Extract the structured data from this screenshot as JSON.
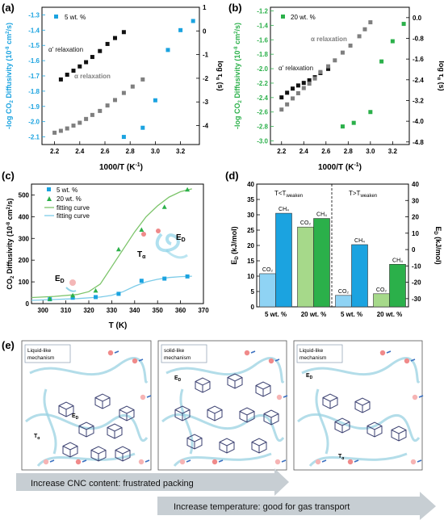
{
  "figure": {
    "panels": {
      "a": {
        "letter": "(a)",
        "legend": "5 wt. %",
        "alpha_prime_label": "α' relaxation",
        "alpha_label": "α relaxation"
      },
      "b": {
        "letter": "(b)",
        "legend": "20 wt. %",
        "alpha_prime_label": "α' relaxation",
        "alpha_label": "α relaxation"
      },
      "c": {
        "letter": "(c)",
        "legend_5": "5 wt. %",
        "legend_20": "20 wt. %",
        "fit1": "fitting curve",
        "fit2": "fitting curve",
        "ed_label": "E",
        "ed_sub": "D",
        "ta_label": "T",
        "ta_sub": "α"
      },
      "d": {
        "letter": "(d)",
        "left_header": "T<T",
        "left_header_sub": "weaken",
        "right_header": "T>T",
        "right_header_sub": "weaken"
      },
      "e": {
        "letter": "(e)",
        "box1_label_line1": "Liquid-like",
        "box1_label_line2": "mechanism",
        "box2_label_line1": "solid-like",
        "box2_label_line2": "mechanism",
        "box3_label_line1": "Liquid-like",
        "box3_label_line2": "mechanism",
        "ed": "E",
        "ed_sub": "D",
        "ta": "T",
        "ta_sub": "α",
        "arrow1": "Increase CNC content: frustrated packing",
        "arrow2": "Increase temperature: good for gas transport"
      }
    },
    "colors": {
      "blue": "#1ba3e0",
      "green": "#2bb04a",
      "black": "#111111",
      "gray": "#7f7f7f",
      "light_blue": "#8fd3f4",
      "light_green": "#a6d98a",
      "dark_green": "#1e8a3a"
    }
  },
  "chart_data": [
    {
      "type": "scatter",
      "panel": "a",
      "xlabel": "1000/T (K⁻¹)",
      "ylabel_left": "-log CO₂ Diffusivity (10⁻⁸ cm²/s)",
      "ylabel_right": "log τα (s)",
      "xlim": [
        2.1,
        3.35
      ],
      "ylim_left": [
        -2.15,
        -1.25
      ],
      "ylim_right": [
        -4.8,
        1.0
      ],
      "xticks": [
        "2.2",
        "2.4",
        "2.6",
        "2.8",
        "3.0",
        "3.2"
      ],
      "yticks_left": [
        "-1.3",
        "-1.4",
        "-1.5",
        "-1.6",
        "-1.7",
        "-1.8",
        "-1.9",
        "-2.0",
        "-2.1"
      ],
      "yticks_right": [
        "1",
        "0",
        "-1",
        "-2",
        "-3",
        "-4"
      ],
      "series": [
        {
          "name": "5 wt. %",
          "axis": "left",
          "color": "#1ba3e0",
          "x": [
            2.75,
            2.9,
            3.0,
            3.1,
            3.2,
            3.3
          ],
          "y": [
            -2.1,
            -2.04,
            -1.86,
            -1.53,
            -1.4,
            -1.34
          ]
        },
        {
          "axis": "right",
          "color": "#111111",
          "x": [
            2.25,
            2.3,
            2.35,
            2.4,
            2.45,
            2.5,
            2.56,
            2.62,
            2.68,
            2.75
          ],
          "y": [
            -2.05,
            -1.85,
            -1.68,
            -1.5,
            -1.32,
            -1.1,
            -0.85,
            -0.55,
            -0.3,
            -0.05
          ]
        },
        {
          "axis": "right",
          "color": "#7f7f7f",
          "x": [
            2.2,
            2.25,
            2.3,
            2.35,
            2.4,
            2.45,
            2.5,
            2.56,
            2.62,
            2.68,
            2.75,
            2.82,
            2.9
          ],
          "y": [
            -4.3,
            -4.22,
            -4.12,
            -4.0,
            -3.88,
            -3.72,
            -3.55,
            -3.38,
            -3.15,
            -2.92,
            -2.62,
            -2.35,
            -2.05
          ]
        }
      ]
    },
    {
      "type": "scatter",
      "panel": "b",
      "xlabel": "1000/T (K⁻¹)",
      "ylabel_left": "-log CO₂ Diffusivity (10⁻⁸ cm²/s)",
      "ylabel_right": "log τα (s)",
      "xlim": [
        2.1,
        3.35
      ],
      "ylim_left": [
        -3.05,
        -1.15
      ],
      "ylim_right": [
        -4.9,
        0.4
      ],
      "xticks": [
        "2.2",
        "2.4",
        "2.6",
        "2.8",
        "3.0",
        "3.2"
      ],
      "yticks_left": [
        "-1.2",
        "-1.4",
        "-1.6",
        "-1.8",
        "-2.0",
        "-2.2",
        "-2.4",
        "-2.6",
        "-2.8",
        "-3.0"
      ],
      "yticks_right": [
        "0.0",
        "-0.8",
        "-1.6",
        "-2.4",
        "-3.2",
        "-4.0",
        "-4.8"
      ],
      "series": [
        {
          "name": "20 wt. %",
          "axis": "left",
          "color": "#2bb04a",
          "x": [
            2.75,
            2.85,
            3.0,
            3.1,
            3.2,
            3.3
          ],
          "y": [
            -2.8,
            -2.75,
            -2.6,
            -1.9,
            -1.62,
            -1.38
          ]
        },
        {
          "axis": "right",
          "color": "#111111",
          "x": [
            2.2,
            2.25,
            2.3,
            2.35,
            2.4,
            2.45,
            2.5,
            2.55,
            2.62
          ],
          "y": [
            -3.08,
            -2.9,
            -2.74,
            -2.62,
            -2.52,
            -2.42,
            -2.3,
            -2.14,
            -1.98
          ]
        },
        {
          "axis": "right",
          "color": "#7f7f7f",
          "x": [
            2.2,
            2.25,
            2.3,
            2.35,
            2.4,
            2.45,
            2.5,
            2.55,
            2.62,
            2.68,
            2.75,
            2.82,
            2.9,
            2.95,
            3.0
          ],
          "y": [
            -3.55,
            -3.35,
            -3.12,
            -2.92,
            -2.72,
            -2.55,
            -2.35,
            -2.1,
            -1.88,
            -1.65,
            -1.35,
            -1.08,
            -0.72,
            -0.45,
            -0.18
          ]
        }
      ]
    },
    {
      "type": "scatter",
      "panel": "c",
      "xlabel": "T (K)",
      "ylabel": "CO₂ Diffusivity (10⁻⁸ cm²/s)",
      "xlim": [
        295,
        370
      ],
      "ylim": [
        0,
        550
      ],
      "xticks": [
        "300",
        "310",
        "320",
        "330",
        "340",
        "350",
        "360",
        "370"
      ],
      "yticks": [
        "0",
        "100",
        "200",
        "300",
        "400",
        "500"
      ],
      "series": [
        {
          "name": "5 wt. %",
          "color": "#1ba3e0",
          "x": [
            303,
            313,
            323,
            333,
            343,
            353,
            363
          ],
          "y": [
            20,
            27,
            30,
            45,
            105,
            115,
            125
          ]
        },
        {
          "name": "20 wt. %",
          "color": "#2bb04a",
          "x": [
            303,
            313,
            323,
            333,
            343,
            353,
            363
          ],
          "y": [
            22,
            38,
            60,
            250,
            340,
            445,
            525
          ]
        },
        {
          "name": "fitting curve",
          "color": "#2bb04a",
          "fit": true,
          "x": [
            295,
            305,
            315,
            320,
            325,
            330,
            335,
            340,
            345,
            350,
            355,
            360,
            365
          ],
          "y": [
            28,
            33,
            42,
            55,
            90,
            170,
            250,
            330,
            400,
            450,
            490,
            515,
            528
          ]
        },
        {
          "name": "fitting curve",
          "color": "#1ba3e0",
          "fit": true,
          "x": [
            295,
            305,
            315,
            325,
            330,
            335,
            340,
            345,
            350,
            355,
            360,
            365
          ],
          "y": [
            15,
            19,
            23,
            30,
            38,
            55,
            80,
            100,
            112,
            120,
            124,
            126
          ]
        }
      ]
    },
    {
      "type": "bar",
      "panel": "d",
      "ylabel_left": "E_D (kJ/mol)",
      "ylabel_right": "E_D (kJ/mol)",
      "ylim_left": [
        0,
        40
      ],
      "ylim_right": [
        -35,
        40
      ],
      "yticks_left": [
        "0",
        "5",
        "10",
        "15",
        "20",
        "25",
        "30",
        "35",
        "40"
      ],
      "yticks_right": [
        "40",
        "30",
        "20",
        "10",
        "0",
        "-10",
        "-20",
        "-30"
      ],
      "categories": [
        "5 wt. %",
        "20 wt. %",
        "5 wt. %",
        "20 wt. %"
      ],
      "bars": [
        {
          "group": 0,
          "gas": "CO₂",
          "value": 10.8,
          "axis": "left",
          "color": "#8fd3f4"
        },
        {
          "group": 0,
          "gas": "CH₄",
          "value": 30.5,
          "axis": "left",
          "color": "#1ba3e0"
        },
        {
          "group": 1,
          "gas": "CO₂",
          "value": 26.0,
          "axis": "left",
          "color": "#a6d98a"
        },
        {
          "group": 1,
          "gas": "CH₄",
          "value": 28.8,
          "axis": "left",
          "color": "#2bb04a"
        },
        {
          "group": 2,
          "gas": "CO₂",
          "value": -28,
          "axis": "right",
          "color": "#8fd3f4"
        },
        {
          "group": 2,
          "gas": "CH₄",
          "value": 3,
          "axis": "right",
          "color": "#1ba3e0"
        },
        {
          "group": 3,
          "gas": "CO₂",
          "value": -27,
          "axis": "right",
          "color": "#a6d98a"
        },
        {
          "group": 3,
          "gas": "CH₄",
          "value": -9,
          "axis": "right",
          "color": "#2bb04a"
        }
      ]
    }
  ]
}
